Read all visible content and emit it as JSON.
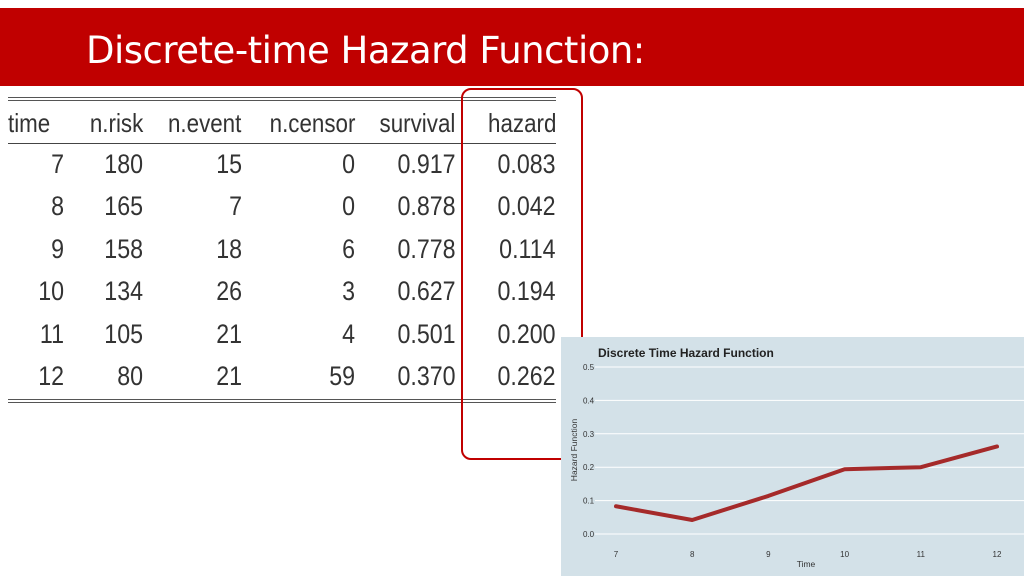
{
  "slide": {
    "title": "Discrete-time Hazard Function:"
  },
  "table": {
    "columns": [
      "time",
      "n.risk",
      "n.event",
      "n.censor",
      "survival",
      "hazard"
    ],
    "rows": [
      [
        "7",
        "180",
        "15",
        "0",
        "0.917",
        "0.083"
      ],
      [
        "8",
        "165",
        "7",
        "0",
        "0.878",
        "0.042"
      ],
      [
        "9",
        "158",
        "18",
        "6",
        "0.778",
        "0.114"
      ],
      [
        "10",
        "134",
        "26",
        "3",
        "0.627",
        "0.194"
      ],
      [
        "11",
        "105",
        "21",
        "4",
        "0.501",
        "0.200"
      ],
      [
        "12",
        "80",
        "21",
        "59",
        "0.370",
        "0.262"
      ]
    ]
  },
  "chart_data": {
    "type": "line",
    "title": "Discrete Time Hazard Function",
    "xlabel": "Time",
    "ylabel": "Hazard Function",
    "x": [
      7,
      8,
      9,
      10,
      11,
      12
    ],
    "series": [
      {
        "values": [
          0.083,
          0.042,
          0.114,
          0.194,
          0.2,
          0.262
        ]
      }
    ],
    "xlim": [
      7,
      12
    ],
    "ylim": [
      0,
      0.5
    ],
    "xticks": [
      "7",
      "8",
      "9",
      "10",
      "11",
      "12"
    ],
    "yticks": [
      "0.0",
      "0.1",
      "0.2",
      "0.3",
      "0.4",
      "0.5"
    ],
    "grid": true,
    "background_color": "#d3e1e8",
    "line_color": "#a52a2a"
  },
  "colors": {
    "title_bar": "#c00000",
    "highlight": "#c00000"
  }
}
